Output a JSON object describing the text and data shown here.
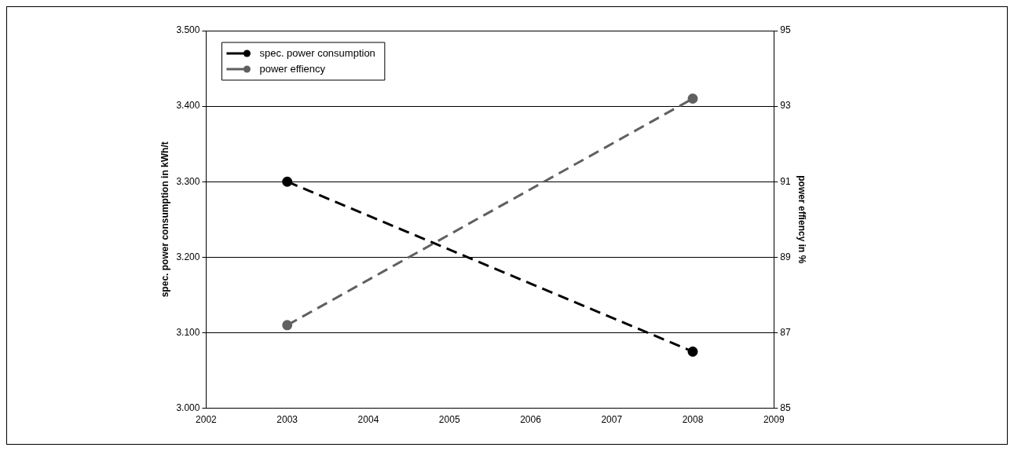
{
  "chart_data": {
    "type": "line",
    "xlabel": null,
    "ylabel": "spec. power consumption in kWh/t",
    "y2label": "power effiency in %",
    "x": [
      2003,
      2008
    ],
    "series": [
      {
        "name": "spec. power consumption",
        "color": "#000000",
        "values": [
          3.3,
          3.075
        ]
      },
      {
        "name": "power effiency",
        "color": "#606060",
        "values": [
          87.2,
          93.2
        ],
        "axis": "y2"
      }
    ],
    "xlim": [
      2002,
      2009
    ],
    "xticks": [
      2002,
      2003,
      2004,
      2005,
      2006,
      2007,
      2008,
      2009
    ],
    "ylim": [
      3.0,
      3.5
    ],
    "yticks": [
      {
        "value": 3.0,
        "label": "3.000"
      },
      {
        "value": 3.1,
        "label": "3.100"
      },
      {
        "value": 3.2,
        "label": "3.200"
      },
      {
        "value": 3.3,
        "label": "3.300"
      },
      {
        "value": 3.4,
        "label": "3.400"
      },
      {
        "value": 3.5,
        "label": "3.500"
      }
    ],
    "y2lim": [
      85,
      95
    ],
    "y2ticks": [
      85,
      87,
      89,
      91,
      93,
      95
    ],
    "grid": "y",
    "legend": "top left",
    "marker": "circle",
    "line_style": "dashed"
  }
}
